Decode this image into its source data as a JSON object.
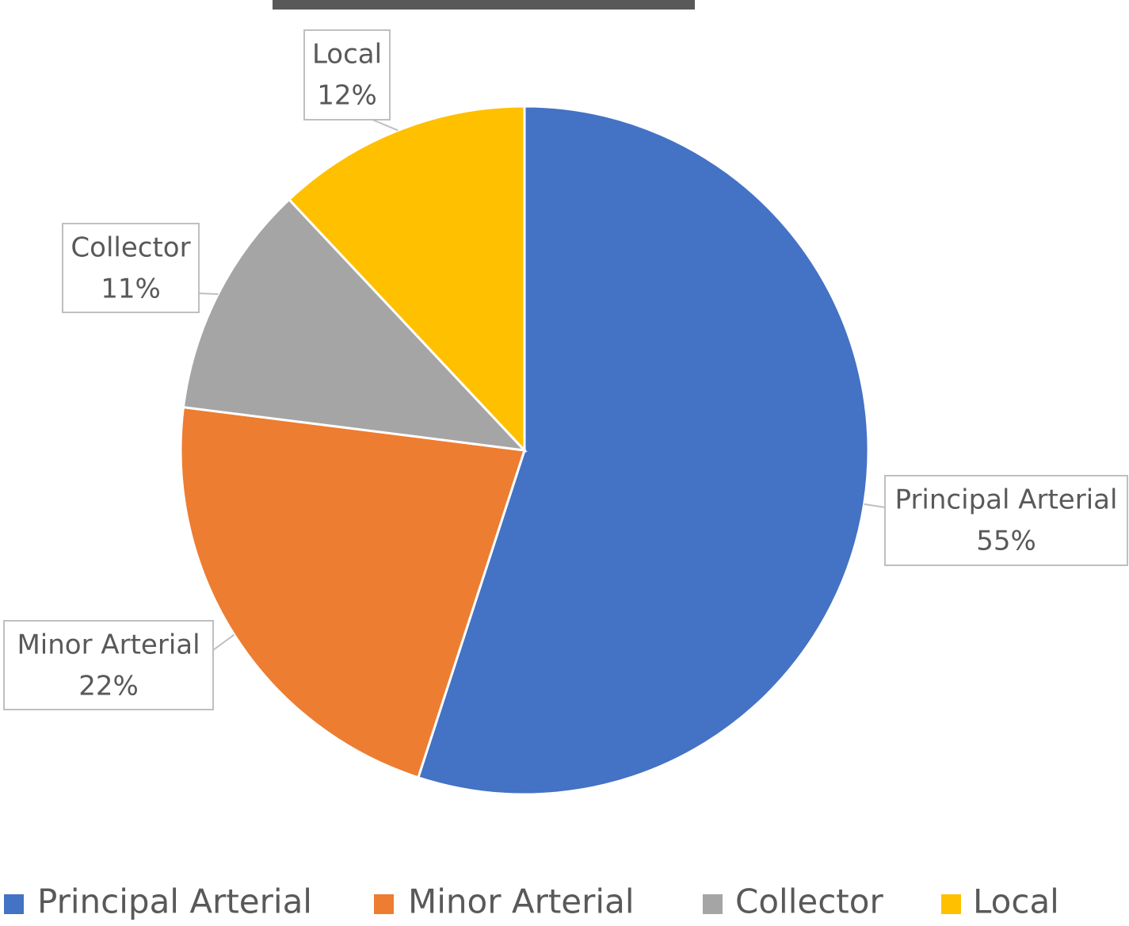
{
  "chart_data": {
    "type": "pie",
    "categories": [
      "Principal Arterial",
      "Minor Arterial",
      "Collector",
      "Local"
    ],
    "values": [
      55,
      22,
      11,
      12
    ],
    "value_labels": [
      "55%",
      "22%",
      "11%",
      "12%"
    ],
    "colors": [
      "#4472c4",
      "#ed7d31",
      "#a5a5a5",
      "#ffc000"
    ],
    "legend": "bottom"
  }
}
